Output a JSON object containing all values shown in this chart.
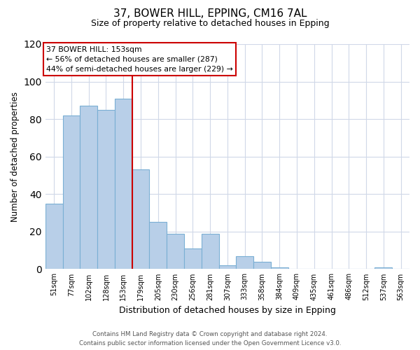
{
  "title1": "37, BOWER HILL, EPPING, CM16 7AL",
  "title2": "Size of property relative to detached houses in Epping",
  "xlabel": "Distribution of detached houses by size in Epping",
  "ylabel": "Number of detached properties",
  "bar_labels": [
    "51sqm",
    "77sqm",
    "102sqm",
    "128sqm",
    "153sqm",
    "179sqm",
    "205sqm",
    "230sqm",
    "256sqm",
    "281sqm",
    "307sqm",
    "333sqm",
    "358sqm",
    "384sqm",
    "409sqm",
    "435sqm",
    "461sqm",
    "486sqm",
    "512sqm",
    "537sqm",
    "563sqm"
  ],
  "bar_heights": [
    35,
    82,
    87,
    85,
    91,
    53,
    25,
    19,
    11,
    19,
    2,
    7,
    4,
    1,
    0,
    0,
    0,
    0,
    0,
    1,
    0
  ],
  "bar_color": "#b8cfe8",
  "bar_edge_color": "#7aafd4",
  "vline_after_index": 4,
  "vline_color": "#cc0000",
  "annotation_lines": [
    "37 BOWER HILL: 153sqm",
    "← 56% of detached houses are smaller (287)",
    "44% of semi-detached houses are larger (229) →"
  ],
  "annotation_box_color": "#ffffff",
  "annotation_box_edge": "#cc0000",
  "ylim": [
    0,
    120
  ],
  "yticks": [
    0,
    20,
    40,
    60,
    80,
    100,
    120
  ],
  "footnote1": "Contains HM Land Registry data © Crown copyright and database right 2024.",
  "footnote2": "Contains public sector information licensed under the Open Government Licence v3.0.",
  "bg_color": "#ffffff",
  "grid_color": "#d0d8e8"
}
